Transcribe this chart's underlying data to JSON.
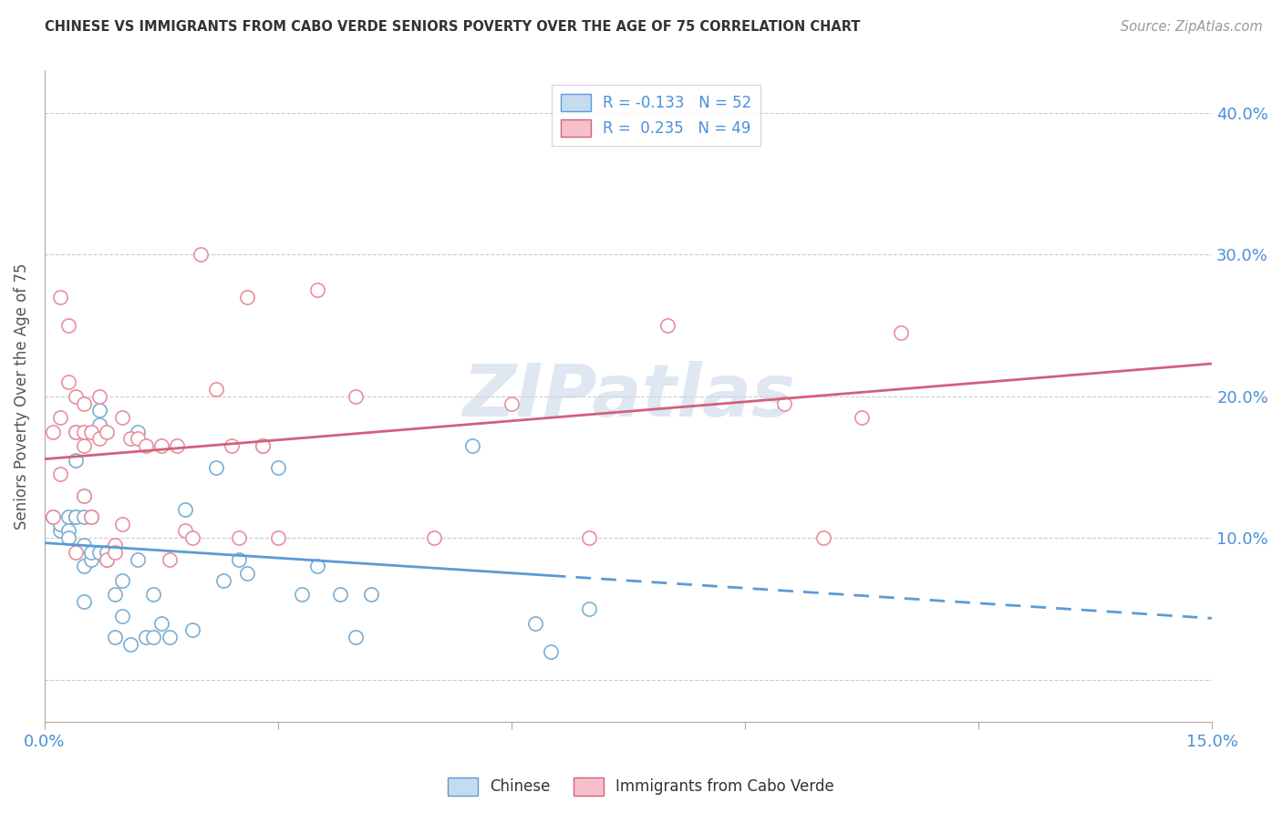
{
  "title": "CHINESE VS IMMIGRANTS FROM CABO VERDE SENIORS POVERTY OVER THE AGE OF 75 CORRELATION CHART",
  "source": "Source: ZipAtlas.com",
  "ylabel": "Seniors Poverty Over the Age of 75",
  "xlim": [
    0.0,
    0.15
  ],
  "ylim": [
    -0.03,
    0.43
  ],
  "yticks": [
    0.0,
    0.1,
    0.2,
    0.3,
    0.4
  ],
  "ytick_labels": [
    "",
    "10.0%",
    "20.0%",
    "30.0%",
    "40.0%"
  ],
  "xticks": [
    0.0,
    0.03,
    0.06,
    0.09,
    0.12,
    0.15
  ],
  "xtick_labels": [
    "0.0%",
    "",
    "",
    "",
    "",
    "15.0%"
  ],
  "chinese_R": -0.133,
  "chinese_N": 52,
  "caboverde_R": 0.235,
  "caboverde_N": 49,
  "chinese_scatter_color": "#ffffff",
  "chinese_edge_color": "#7bafd4",
  "caboverde_scatter_color": "#ffffff",
  "caboverde_edge_color": "#e88fa0",
  "trendline_chinese_color": "#5b9bd5",
  "trendline_caboverde_color": "#d45f7a",
  "legend_label_chinese": "Chinese",
  "legend_label_caboverde": "Immigrants from Cabo Verde",
  "watermark": "ZIPatlas",
  "background_color": "#ffffff",
  "chinese_x": [
    0.001,
    0.002,
    0.002,
    0.003,
    0.003,
    0.003,
    0.004,
    0.004,
    0.004,
    0.004,
    0.005,
    0.005,
    0.005,
    0.005,
    0.005,
    0.006,
    0.006,
    0.006,
    0.007,
    0.007,
    0.007,
    0.008,
    0.008,
    0.009,
    0.009,
    0.01,
    0.01,
    0.011,
    0.012,
    0.012,
    0.013,
    0.014,
    0.014,
    0.015,
    0.016,
    0.018,
    0.019,
    0.022,
    0.023,
    0.025,
    0.026,
    0.028,
    0.03,
    0.033,
    0.035,
    0.038,
    0.04,
    0.042,
    0.055,
    0.063,
    0.065,
    0.07
  ],
  "chinese_y": [
    0.115,
    0.105,
    0.11,
    0.115,
    0.105,
    0.1,
    0.155,
    0.175,
    0.115,
    0.115,
    0.115,
    0.13,
    0.095,
    0.08,
    0.055,
    0.115,
    0.085,
    0.09,
    0.18,
    0.19,
    0.09,
    0.085,
    0.09,
    0.06,
    0.03,
    0.07,
    0.045,
    0.025,
    0.175,
    0.085,
    0.03,
    0.03,
    0.06,
    0.04,
    0.03,
    0.12,
    0.035,
    0.15,
    0.07,
    0.085,
    0.075,
    0.165,
    0.15,
    0.06,
    0.08,
    0.06,
    0.03,
    0.06,
    0.165,
    0.04,
    0.02,
    0.05
  ],
  "caboverde_x": [
    0.001,
    0.001,
    0.002,
    0.002,
    0.002,
    0.003,
    0.003,
    0.004,
    0.004,
    0.004,
    0.005,
    0.005,
    0.005,
    0.005,
    0.006,
    0.006,
    0.007,
    0.007,
    0.008,
    0.008,
    0.009,
    0.009,
    0.01,
    0.01,
    0.011,
    0.012,
    0.013,
    0.015,
    0.016,
    0.017,
    0.018,
    0.019,
    0.02,
    0.022,
    0.024,
    0.025,
    0.026,
    0.028,
    0.03,
    0.035,
    0.04,
    0.05,
    0.06,
    0.07,
    0.08,
    0.095,
    0.1,
    0.105,
    0.11
  ],
  "caboverde_y": [
    0.175,
    0.115,
    0.27,
    0.185,
    0.145,
    0.25,
    0.21,
    0.2,
    0.175,
    0.09,
    0.195,
    0.175,
    0.165,
    0.13,
    0.175,
    0.115,
    0.2,
    0.17,
    0.175,
    0.085,
    0.095,
    0.09,
    0.185,
    0.11,
    0.17,
    0.17,
    0.165,
    0.165,
    0.085,
    0.165,
    0.105,
    0.1,
    0.3,
    0.205,
    0.165,
    0.1,
    0.27,
    0.165,
    0.1,
    0.275,
    0.2,
    0.1,
    0.195,
    0.1,
    0.25,
    0.195,
    0.1,
    0.185,
    0.245
  ],
  "chinese_trendline_solid_end": 0.065,
  "grid_color": "#cccccc",
  "tick_color": "#aaaaaa",
  "label_color": "#4a90d9",
  "title_color": "#333333",
  "source_color": "#999999"
}
